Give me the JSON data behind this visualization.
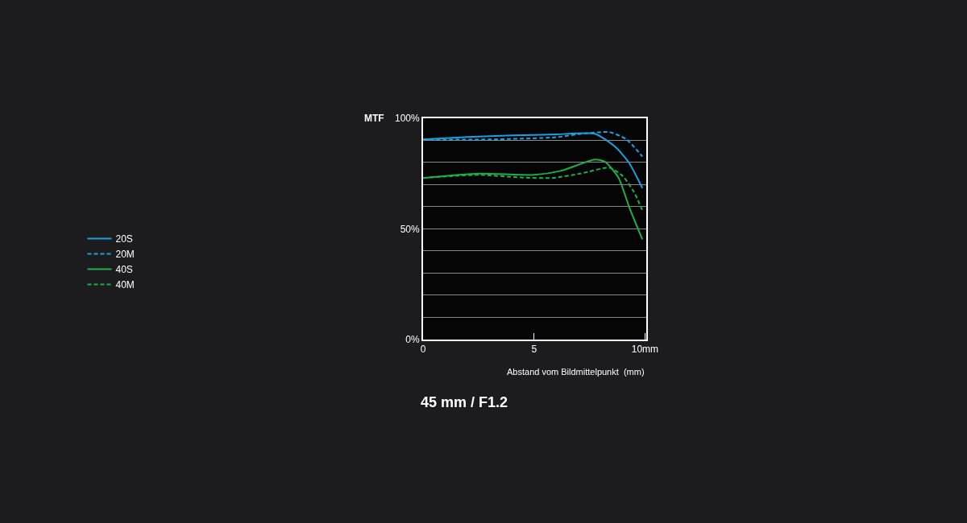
{
  "chart_data": {
    "type": "line",
    "title": "45 mm / F1.2",
    "ylabel": "MTF",
    "xlabel": "Abstand vom Bildmittelpunkt  (mm)",
    "xlim": [
      0,
      10.05
    ],
    "xticks": [
      0,
      5,
      {
        "value": 10,
        "label": "10mm"
      }
    ],
    "ylim": [
      0,
      100
    ],
    "yticks": [
      {
        "value": 0,
        "label": "0%"
      },
      {
        "value": 10,
        "label": null
      },
      {
        "value": 20,
        "label": null
      },
      {
        "value": 30,
        "label": null
      },
      {
        "value": 40,
        "label": null
      },
      {
        "value": 50,
        "label": "50%"
      },
      {
        "value": 60,
        "label": null
      },
      {
        "value": 70,
        "label": null
      },
      {
        "value": 80,
        "label": null
      },
      {
        "value": 90,
        "label": null
      },
      {
        "value": 100,
        "label": "100%"
      }
    ],
    "grid": "y",
    "legend": "left",
    "marker": "none",
    "series": [
      {
        "name": "20S",
        "color": "#1aa0e0",
        "line_style": "solid",
        "x": [
          0,
          2,
          4,
          6,
          7.74,
          8.69,
          9.29,
          9.88
        ],
        "values": [
          90.4,
          91.5,
          92.2,
          92.7,
          93.0,
          86.8,
          79.7,
          68.4
        ]
      },
      {
        "name": "20M",
        "color": "#1aa0e0",
        "line_style": "dashed",
        "x": [
          0,
          3,
          6,
          7,
          8.4,
          9.17,
          9.88
        ],
        "values": [
          90.4,
          90.4,
          91.4,
          92.8,
          93.7,
          90.4,
          82.7
        ]
      },
      {
        "name": "40S",
        "color": "#1db04a",
        "line_style": "solid",
        "x": [
          0,
          2.5,
          5,
          6.2,
          7.74,
          8.2,
          8.8,
          9.3,
          9.88
        ],
        "values": [
          73.0,
          75.0,
          74.4,
          76.2,
          81.3,
          80.3,
          73.2,
          59.5,
          45.3
        ]
      },
      {
        "name": "40M",
        "color": "#1db04a",
        "line_style": "dashed",
        "x": [
          0,
          2.5,
          4.4,
          5.83,
          7.1,
          8.4,
          9.0,
          9.5,
          9.88
        ],
        "values": [
          73.0,
          74.4,
          73.2,
          73.0,
          75.0,
          77.6,
          73.8,
          66.7,
          58.4
        ]
      }
    ]
  }
}
